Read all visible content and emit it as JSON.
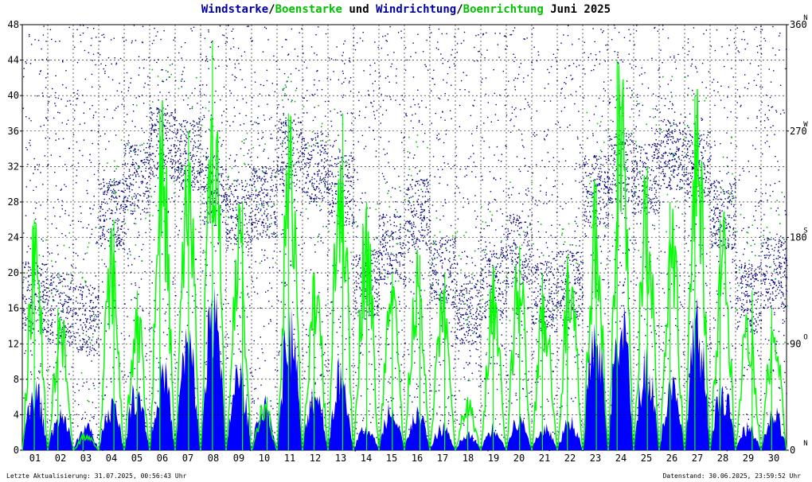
{
  "title_parts": [
    {
      "text": "Windstarke",
      "color": "#0000a0"
    },
    {
      "text": "/",
      "color": "#000000"
    },
    {
      "text": "Boenstarke",
      "color": "#00c000"
    },
    {
      "text": " und ",
      "color": "#000000"
    },
    {
      "text": "Windrichtung",
      "color": "#0000a0"
    },
    {
      "text": "/",
      "color": "#000000"
    },
    {
      "text": "Boenrichtung",
      "color": "#00c000"
    },
    {
      "text": " Juni 2025",
      "color": "#000000"
    }
  ],
  "footer": {
    "left": "Letzte Aktualisierung: 31.07.2025, 00:56:43 Uhr",
    "right": "Datenstand: 30.06.2025, 23:59:52 Uhr"
  },
  "colors": {
    "wind_speed": "#0000ff",
    "gust_speed": "#00ff00",
    "wind_direction": "#000080",
    "gust_direction": "#00c000",
    "grid": "#000000"
  },
  "chart_data": {
    "type": "area",
    "x_categories": [
      "01",
      "02",
      "03",
      "04",
      "05",
      "06",
      "07",
      "08",
      "09",
      "10",
      "11",
      "12",
      "13",
      "14",
      "15",
      "16",
      "17",
      "18",
      "19",
      "20",
      "21",
      "22",
      "23",
      "24",
      "25",
      "26",
      "27",
      "28",
      "29",
      "30"
    ],
    "y_left": {
      "ticks": [
        0,
        4,
        8,
        12,
        16,
        20,
        24,
        28,
        32,
        36,
        40,
        44,
        48
      ],
      "range": [
        0,
        48
      ]
    },
    "y_right": {
      "ticks": [
        0,
        90,
        180,
        270,
        360
      ],
      "range": [
        0,
        360
      ],
      "compass": [
        {
          "value": 0,
          "label": "N"
        },
        {
          "value": 90,
          "label": "O"
        },
        {
          "value": 180,
          "label": "S"
        },
        {
          "value": 270,
          "label": "W"
        },
        {
          "value": 360,
          "label": "N"
        }
      ]
    },
    "grid": true,
    "series": [
      {
        "name": "Windstarke",
        "kind": "area",
        "daily_peak": [
          8,
          5,
          3,
          6,
          8,
          10,
          14,
          18,
          10,
          6,
          16,
          8,
          10,
          3,
          6,
          5,
          3,
          2,
          3,
          4,
          3,
          4,
          16,
          18,
          12,
          8,
          16,
          8,
          3,
          5
        ]
      },
      {
        "name": "Boenstarke",
        "kind": "line",
        "daily_peak": [
          26,
          16,
          2,
          26,
          18,
          38,
          36,
          46,
          28,
          6,
          38,
          20,
          38,
          28,
          20,
          22,
          20,
          6,
          20,
          23,
          20,
          22,
          30,
          44,
          32,
          28,
          40,
          26,
          18,
          16
        ]
      },
      {
        "name": "Windrichtung",
        "kind": "scatter",
        "band_center": [
          130,
          120,
          110,
          200,
          230,
          260,
          250,
          220,
          200,
          210,
          250,
          240,
          220,
          140,
          170,
          200,
          150,
          120,
          140,
          170,
          130,
          140,
          220,
          240,
          230,
          250,
          240,
          200,
          130,
          150
        ]
      },
      {
        "name": "Boenrichtung",
        "kind": "scatter"
      }
    ]
  }
}
